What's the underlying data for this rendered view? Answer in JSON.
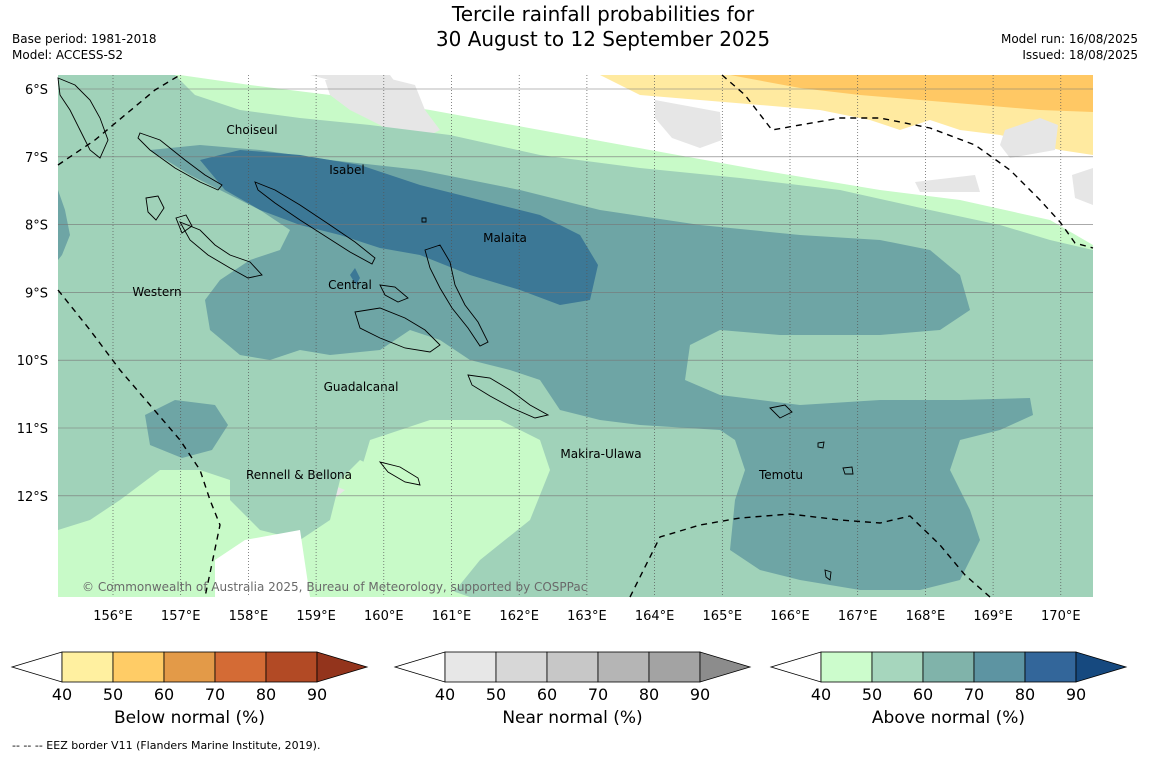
{
  "title": {
    "line1": "Tercile rainfall probabilities for",
    "line2": "30 August to 12 September 2025"
  },
  "meta_left": {
    "base_period": "Base period: 1981-2018",
    "model": "Model: ACCESS-S2"
  },
  "meta_right": {
    "model_run": "Model run: 16/08/2025",
    "issued": "Issued: 18/08/2025"
  },
  "map": {
    "lon_labels": [
      "156°E",
      "157°E",
      "158°E",
      "159°E",
      "160°E",
      "161°E",
      "162°E",
      "163°E",
      "164°E",
      "165°E",
      "166°E",
      "167°E",
      "168°E",
      "169°E",
      "170°E"
    ],
    "lat_labels": [
      "6°S",
      "7°S",
      "8°S",
      "9°S",
      "10°S",
      "11°S",
      "12°S"
    ],
    "region_labels": [
      {
        "name": "Choiseul"
      },
      {
        "name": "Isabel"
      },
      {
        "name": "Malaita"
      },
      {
        "name": "Western"
      },
      {
        "name": "Central"
      },
      {
        "name": "Guadalcanal"
      },
      {
        "name": "Makira-Ulawa"
      },
      {
        "name": "Rennell & Bellona"
      },
      {
        "name": "Temotu"
      }
    ],
    "copyright": "© Commonwealth of Australia 2025, Bureau of Meteorology, supported by COSPPac",
    "colors": {
      "above_40_50": "#c8fac8",
      "above_50_60": "#a0d2b9",
      "above_60_70": "#6ea5a5",
      "above_70_80": "#3c7896",
      "near_40_50": "#e6e6e6",
      "below_40_50": "#ffeaa0",
      "below_50_60": "#ffc864"
    }
  },
  "legends": [
    {
      "title": "Below normal (%)",
      "ticks": [
        "40",
        "50",
        "60",
        "70",
        "80",
        "90"
      ],
      "colors": [
        "#ffffff",
        "#fff0a0",
        "#ffcc66",
        "#e39a48",
        "#d46b35",
        "#b24a25",
        "#93341c"
      ]
    },
    {
      "title": "Near normal (%)",
      "ticks": [
        "40",
        "50",
        "60",
        "70",
        "80",
        "90"
      ],
      "colors": [
        "#ffffff",
        "#e7e7e7",
        "#d7d7d7",
        "#c7c7c7",
        "#b5b5b5",
        "#a3a3a3",
        "#8c8c8c"
      ]
    },
    {
      "title": "Above normal (%)",
      "ticks": [
        "40",
        "50",
        "60",
        "70",
        "80",
        "90"
      ],
      "colors": [
        "#ffffff",
        "#ccfccc",
        "#a6d6bd",
        "#80b3aa",
        "#5d94a2",
        "#33669a",
        "#16497f"
      ]
    }
  ],
  "eez_note": "--  --  -- EEZ border V11 (Flanders Marine Institute, 2019)."
}
